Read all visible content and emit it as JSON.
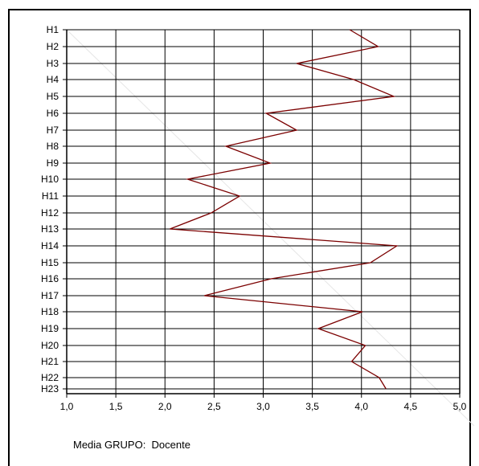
{
  "chart_data": {
    "type": "line",
    "orientation": "horizontal",
    "categories": [
      "H1",
      "H2",
      "H3",
      "H4",
      "H5",
      "H6",
      "H7",
      "H8",
      "H9",
      "H10",
      "H11",
      "H12",
      "H13",
      "H14",
      "H15",
      "H16",
      "H17",
      "H18",
      "H19",
      "H20",
      "H21",
      "H22",
      "H23"
    ],
    "series": [
      {
        "name": "Media GRUPO:  Docente",
        "values": [
          3.88,
          4.17,
          3.34,
          3.92,
          4.33,
          3.03,
          3.34,
          2.62,
          3.07,
          2.23,
          2.76,
          2.47,
          2.05,
          4.36,
          4.09,
          3.08,
          2.4,
          4.01,
          3.56,
          4.04,
          3.9,
          4.18,
          4.25
        ]
      }
    ],
    "xlim": [
      1.0,
      5.0
    ],
    "x_ticks": [
      "1,0",
      "1,5",
      "2,0",
      "2,5",
      "3,0",
      "3,5",
      "4,0",
      "4,5",
      "5,0"
    ],
    "grid": true,
    "legend_position": "bottom-left",
    "colors": {
      "line": "#7b0000",
      "grid": "#000000"
    }
  }
}
